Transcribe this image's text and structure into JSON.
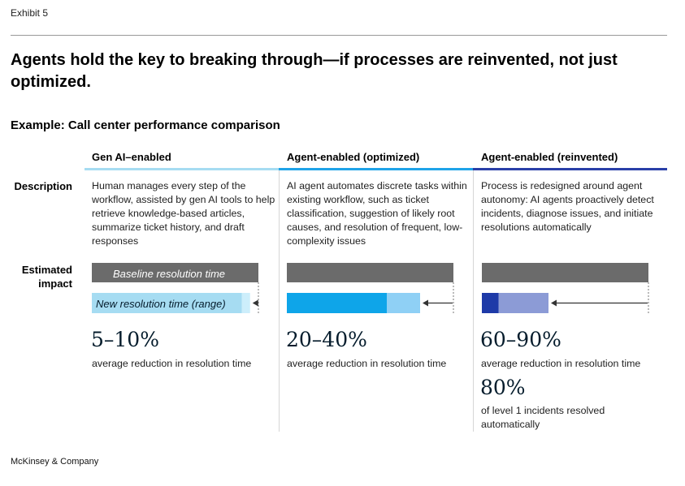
{
  "exhibit": "Exhibit 5",
  "title": "Agents hold the key to breaking through—if processes are reinvented, not just optimized.",
  "subtitle": "Example: Call center performance comparison",
  "row_labels": {
    "description": "Description",
    "impact": "Estimated impact"
  },
  "footer": "McKinsey & Company",
  "colors": {
    "baseline": "#6b6b6b",
    "col1_accent": "#a6dcf2",
    "col2_accent": "#1fa3e8",
    "col3_accent": "#2a3fa8"
  },
  "columns": [
    {
      "header": "Gen AI–enabled",
      "description": "Human manages every step of the workflow, assisted by gen AI tools to help retrieve knowledge-based articles, summarize ticket history, and draft responses",
      "stat_value": "5–10%",
      "stat_label": "average reduction in resolution time"
    },
    {
      "header": "Agent-enabled (optimized)",
      "description": "AI agent automates discrete tasks within existing workflow, such as ticket classification, suggestion of likely root causes, and resolution of frequent, low-complexity issues",
      "stat_value": "20–40%",
      "stat_label": "average reduction in resolution time"
    },
    {
      "header": "Agent-enabled (reinvented)",
      "description": "Process is redesigned around agent autonomy: AI agents proactively detect incidents, diagnose issues, and initiate resolutions automatically",
      "stat_value": "60–90%",
      "stat_label": "average reduction in resolution time",
      "extra_value": "80%",
      "extra_label": "of level 1 incidents resolved automatically"
    }
  ],
  "chart_data": {
    "type": "bar",
    "bar_labels": {
      "baseline": "Baseline resolution time",
      "new": "New resolution time (range)"
    },
    "baseline": 100,
    "series": [
      {
        "reduction_min": 5,
        "reduction_max": 10,
        "colors": [
          "#a6dcf2",
          "#cdeefb"
        ]
      },
      {
        "reduction_min": 20,
        "reduction_max": 40,
        "colors": [
          "#0ea5e9",
          "#8fd0f5"
        ]
      },
      {
        "reduction_min": 60,
        "reduction_max": 90,
        "colors": [
          "#1e3aa8",
          "#8c9bd6"
        ]
      }
    ]
  }
}
